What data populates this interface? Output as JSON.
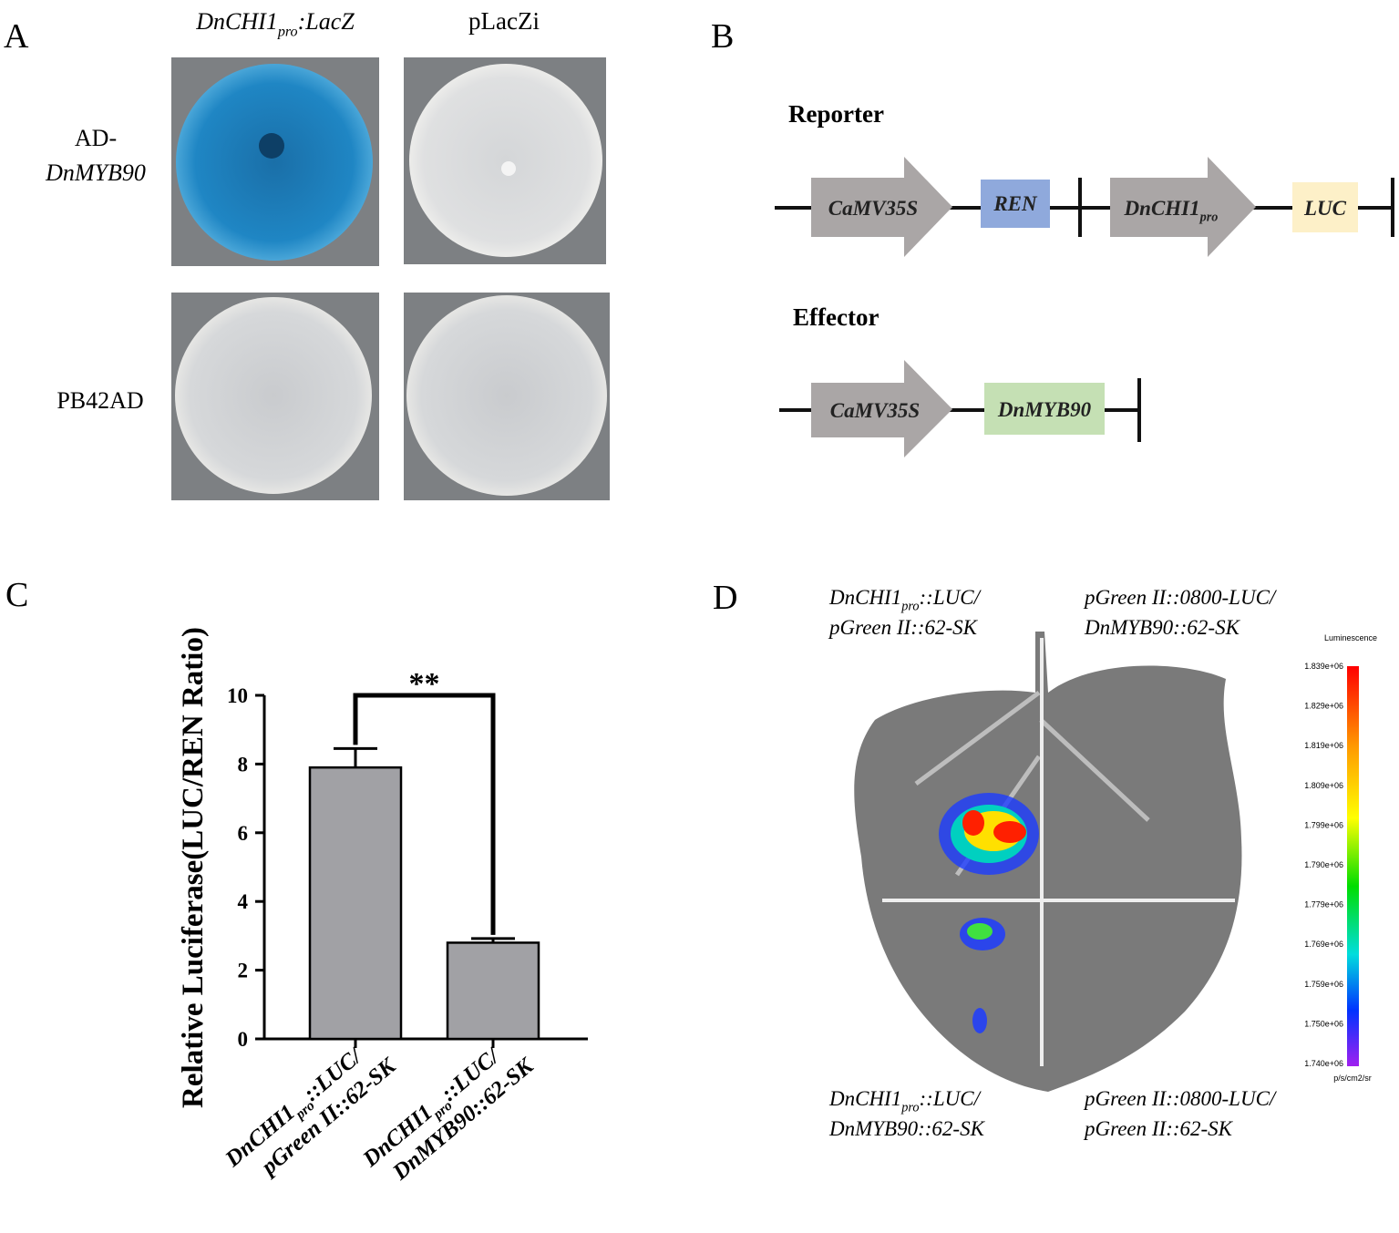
{
  "panel_a": {
    "label": "A",
    "columns": [
      {
        "base": "DnCHI1",
        "sub": "pro",
        "rest": ":LacZ"
      },
      "pLacZi"
    ],
    "rows": [
      [
        "AD-",
        "DnMYB90"
      ],
      [
        "PB42AD"
      ]
    ]
  },
  "panel_b": {
    "label": "B",
    "reporter": {
      "title": "Reporter",
      "promoter1": "CaMV35S",
      "gene1": "REN",
      "promoter2": {
        "base": "DnCHI1",
        "sub": "pro",
        "rest": ""
      },
      "gene2": "LUC"
    },
    "effector": {
      "title": "Effector",
      "promoter": "CaMV35S",
      "gene": "DnMYB90"
    }
  },
  "chart_data": {
    "type": "bar",
    "label": "C",
    "ylabel": "Relative Luciferase(LUC/REN Ratio)",
    "categories": [
      [
        {
          "base": "DnCHI1",
          "sub": "pro",
          "rest": "::LUC/"
        },
        "pGreen II::62-SK"
      ],
      [
        {
          "base": "DnCHI1",
          "sub": "pro",
          "rest": "::LUC/"
        },
        "DnMYB90::62-SK"
      ]
    ],
    "values": [
      7.9,
      2.8
    ],
    "errors": [
      0.55,
      0.12
    ],
    "color": "#a1a1a5",
    "ylim": [
      0,
      10
    ],
    "yticks": [
      0,
      2,
      4,
      6,
      8,
      10
    ],
    "annotation": "**"
  },
  "panel_d": {
    "label": "D",
    "captions": [
      [
        {
          "base": "DnCHI1",
          "sub": "pro",
          "rest": "::LUC/"
        },
        "pGreen II::62-SK"
      ],
      [
        "pGreen II::0800-LUC/",
        "DnMYB90::62-SK"
      ],
      [
        {
          "base": "DnCHI1",
          "sub": "pro",
          "rest": "::LUC/"
        },
        "DnMYB90::62-SK"
      ],
      [
        "pGreen II::0800-LUC/",
        "pGreen II::62-SK"
      ]
    ],
    "colorbar": {
      "title": "Luminescence",
      "unit": "p/s/cm2/sr",
      "ticks": [
        "1.839e+06",
        "1.829e+06",
        "1.819e+06",
        "1.809e+06",
        "1.799e+06",
        "1.790e+06",
        "1.779e+06",
        "1.769e+06",
        "1.759e+06",
        "1.750e+06",
        "1.740e+06"
      ]
    }
  }
}
